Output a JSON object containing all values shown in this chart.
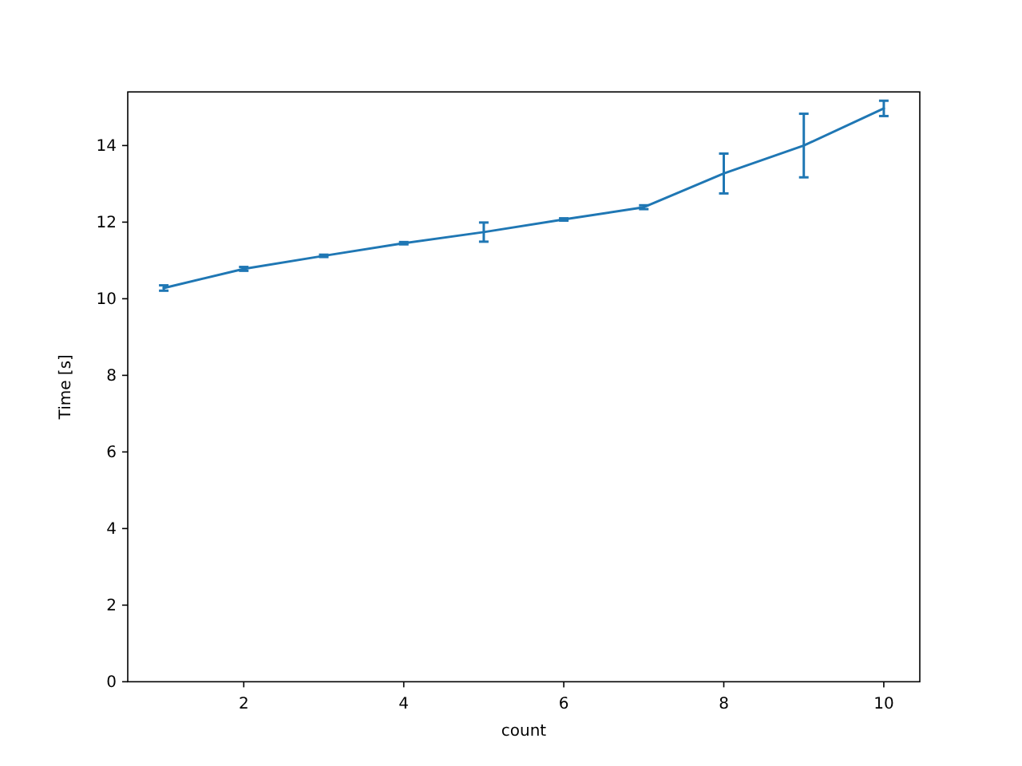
{
  "chart_data": {
    "type": "line",
    "xlabel": "count",
    "ylabel": "Time [s]",
    "x": [
      1,
      2,
      3,
      4,
      5,
      6,
      7,
      8,
      9,
      10
    ],
    "series": [
      {
        "color": "#1f77b4",
        "values": [
          10.28,
          10.78,
          11.12,
          11.45,
          11.74,
          12.07,
          12.39,
          13.27,
          14.0,
          14.97
        ],
        "errors": [
          0.07,
          0.05,
          0.03,
          0.03,
          0.25,
          0.03,
          0.05,
          0.52,
          0.83,
          0.2
        ]
      }
    ],
    "xlim": [
      0.55,
      10.45
    ],
    "ylim": [
      0,
      15.4
    ],
    "xticks": [
      2,
      4,
      6,
      8,
      10
    ],
    "yticks": [
      0,
      2,
      4,
      6,
      8,
      10,
      12,
      14
    ],
    "grid": false,
    "marker": "none",
    "line_style": "solid"
  }
}
